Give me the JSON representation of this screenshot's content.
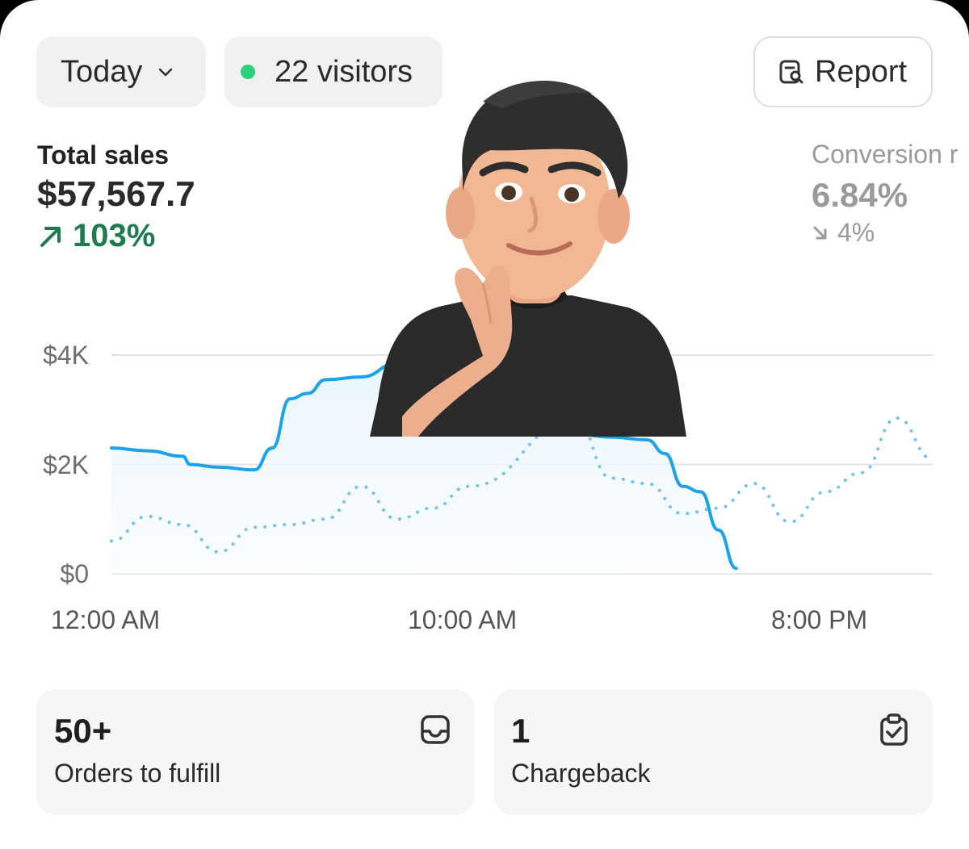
{
  "filters": {
    "date_label": "Today",
    "visitors_label": "22 visitors",
    "visitors_dot_color": "#2fd07a"
  },
  "report_button": {
    "label": "Report",
    "icon": "report-search-icon"
  },
  "metrics": {
    "total_sales": {
      "label": "Total sales",
      "value": "$57,567.7",
      "change": "103%",
      "direction": "up",
      "color": "#1f7a4d"
    },
    "conversion": {
      "label": "Conversion r",
      "value": "6.84%",
      "change": "4%",
      "direction": "down",
      "color": "#9a9a9a"
    }
  },
  "chart_data": {
    "type": "line",
    "y_ticks": [
      "$4K",
      "$2K",
      "$0"
    ],
    "x_ticks": [
      "12:00 AM",
      "10:00 AM",
      "8:00 PM"
    ],
    "ylim": [
      0,
      4000
    ],
    "xlim": [
      0,
      23
    ],
    "series": [
      {
        "style": "solid",
        "color": "#1aa3e8",
        "x": [
          0,
          1,
          2,
          2.2,
          3,
          4,
          4.5,
          5,
          5.5,
          6,
          7,
          8,
          9,
          9.5,
          14,
          15,
          15.5,
          16,
          16.5,
          17,
          17.5
        ],
        "y": [
          2300,
          2250,
          2150,
          2000,
          1950,
          1900,
          2300,
          3200,
          3300,
          3550,
          3600,
          3850,
          3850,
          3900,
          2500,
          2450,
          2200,
          1600,
          1500,
          800,
          100
        ]
      },
      {
        "style": "dotted",
        "color": "#6ec3ef",
        "x": [
          0,
          1,
          2,
          3,
          4,
          5,
          6,
          7,
          8,
          9,
          10,
          13,
          14,
          15,
          16,
          17,
          18,
          19,
          20,
          21,
          22,
          23
        ],
        "y": [
          600,
          1050,
          900,
          400,
          850,
          900,
          1000,
          1600,
          1000,
          1200,
          1600,
          2800,
          1750,
          1650,
          1100,
          1200,
          1650,
          950,
          1500,
          1850,
          2850,
          2100
        ]
      }
    ]
  },
  "tiles": {
    "orders": {
      "value": "50+",
      "label": "Orders to fulfill",
      "icon": "inbox-tray-icon"
    },
    "chargeback": {
      "value": "1",
      "label": "Chargeback",
      "icon": "clipboard-check-icon"
    }
  },
  "sticker": {
    "icon": "memoji-avatar-icon"
  }
}
